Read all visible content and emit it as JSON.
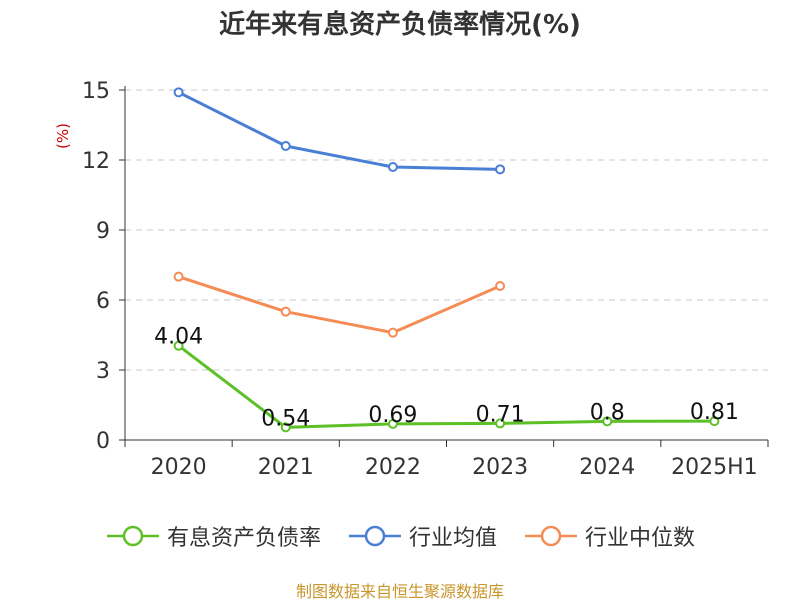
{
  "title": "近年来有息资产负债率情况(%)",
  "unit_label": "(%)",
  "source": "制图数据来自恒生聚源数据库",
  "chart_data": {
    "type": "line",
    "categories": [
      "2020",
      "2021",
      "2022",
      "2023",
      "2024",
      "2025H1"
    ],
    "ylim": [
      0,
      15
    ],
    "yticks": [
      0,
      3,
      6,
      9,
      12,
      15
    ],
    "grid": true,
    "legend_position": "bottom",
    "series": [
      {
        "name": "有息资产负债率",
        "color": "#5cc026",
        "values": [
          4.04,
          0.54,
          0.69,
          0.71,
          0.8,
          0.81
        ],
        "labels": [
          "4.04",
          "0.54",
          "0.69",
          "0.71",
          "0.8",
          "0.81"
        ]
      },
      {
        "name": "行业均值",
        "color": "#4a7fd6",
        "values": [
          14.9,
          12.6,
          11.7,
          11.6,
          null,
          null
        ]
      },
      {
        "name": "行业中位数",
        "color": "#f58c55",
        "values": [
          7.0,
          5.5,
          4.6,
          6.6,
          null,
          null
        ]
      }
    ]
  }
}
